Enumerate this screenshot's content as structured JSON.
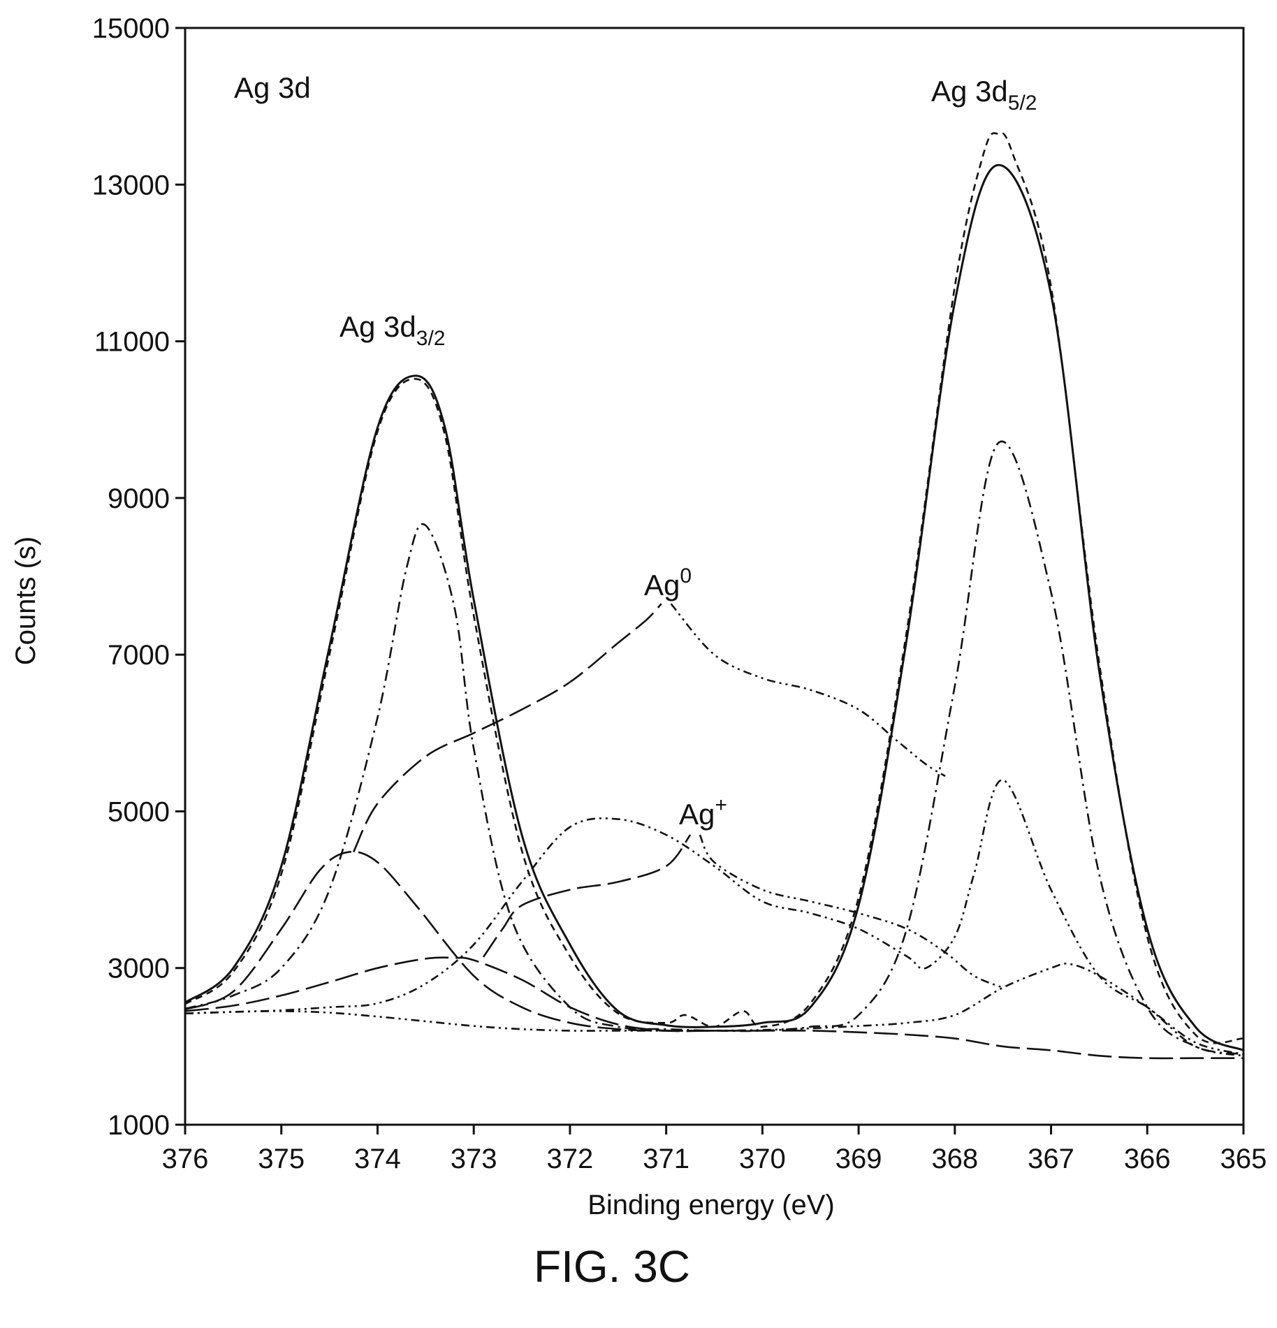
{
  "chart_data": {
    "type": "line",
    "title": "",
    "xlabel": "Binding energy (eV)",
    "ylabel": "Counts (s)",
    "xlim": [
      376,
      365
    ],
    "ylim": [
      1000,
      15000
    ],
    "x_reversed": true,
    "x_ticks": [
      "376",
      "375",
      "374",
      "373",
      "372",
      "371",
      "370",
      "369",
      "368",
      "367",
      "366",
      "365"
    ],
    "y_ticks": [
      "1000",
      "3000",
      "5000",
      "7000",
      "9000",
      "11000",
      "13000",
      "15000"
    ],
    "grid": false,
    "legend": "none",
    "annotations": {
      "region": "Ag 3d",
      "peak_32_main": "Ag 3d",
      "peak_32_sub": "3/2",
      "peak_52_main": "Ag 3d",
      "peak_52_sub": "5/2",
      "ag0_main": "Ag",
      "ag0_sup": "0",
      "agplus_main": "Ag",
      "agplus_sup": "+"
    },
    "series": [
      {
        "style": "solid",
        "x": [
          376,
          375.5,
          375,
          374.5,
          374,
          373.6,
          373.3,
          373,
          372.5,
          372,
          371.5,
          371,
          370.5,
          370,
          369.5,
          369,
          368.5,
          368,
          367.55,
          367,
          366.5,
          366,
          365.5,
          365
        ],
        "y": [
          2560,
          3000,
          4300,
          7100,
          9900,
          10560,
          9900,
          7700,
          4700,
          3300,
          2450,
          2270,
          2250,
          2300,
          2500,
          3800,
          7200,
          11500,
          13250,
          11600,
          6800,
          3500,
          2250,
          1950
        ]
      },
      {
        "style": "short-dash",
        "x": [
          376,
          375.5,
          375,
          374.5,
          374,
          373.6,
          373.3,
          373,
          372.5,
          372,
          371.5,
          371,
          370.8,
          370.5,
          370.2,
          370,
          369.5,
          369,
          368.5,
          368,
          367.7,
          367.55,
          367.4,
          367,
          366.5,
          366,
          365.5,
          365
        ],
        "y": [
          2540,
          2950,
          4200,
          7000,
          9850,
          10520,
          9800,
          7500,
          4500,
          3150,
          2420,
          2300,
          2400,
          2250,
          2450,
          2250,
          2550,
          3900,
          7300,
          11700,
          13400,
          13650,
          13400,
          11700,
          6900,
          3400,
          2150,
          2100
        ]
      },
      {
        "style": "dash-dot",
        "x": [
          376,
          375.5,
          375,
          374.5,
          374,
          373.7,
          373.5,
          373.2,
          373,
          372.6,
          372,
          371.5,
          371,
          370.5,
          370,
          369.5,
          369,
          368.5,
          368,
          367.55,
          367,
          366.5,
          366,
          365.5,
          365
        ],
        "y": [
          2480,
          2650,
          3000,
          4000,
          6200,
          8100,
          8650,
          7600,
          5800,
          3600,
          2500,
          2250,
          2220,
          2200,
          2200,
          2250,
          2400,
          3500,
          6600,
          9700,
          7800,
          4200,
          2500,
          2000,
          1900
        ]
      },
      {
        "style": "long-dash",
        "x": [
          376,
          375.5,
          375,
          374.6,
          374.3,
          374,
          373.6,
          373,
          372.5,
          372,
          371.5,
          371,
          370.5,
          370,
          369.5,
          369,
          368.5,
          368,
          367.5,
          367,
          366.5,
          366,
          365.5,
          365
        ],
        "y": [
          2470,
          2700,
          3500,
          4250,
          4480,
          4350,
          3800,
          2900,
          2500,
          2300,
          2220,
          2200,
          2200,
          2200,
          2200,
          2180,
          2150,
          2100,
          2000,
          1950,
          1880,
          1850,
          1850,
          1850
        ]
      },
      {
        "style": "dash-dot-dot",
        "x": [
          376,
          375.5,
          375,
          374.5,
          374,
          373.5,
          373,
          372.5,
          372,
          371.5,
          371,
          370.5,
          370,
          369.5,
          369,
          368.5,
          368.3,
          368,
          367.8,
          367.5,
          367,
          366.5,
          366,
          365.5,
          365
        ],
        "y": [
          2420,
          2440,
          2460,
          2500,
          2550,
          2800,
          3300,
          4100,
          4800,
          4900,
          4700,
          4300,
          3850,
          3700,
          3500,
          3150,
          3000,
          3400,
          4200,
          5400,
          4000,
          2900,
          2500,
          2050,
          1900
        ]
      },
      {
        "style": "dash-dot-dot",
        "x": [
          376,
          375.5,
          375,
          374.5,
          374,
          373.5,
          373,
          372.5,
          372,
          371.5,
          371,
          370.5,
          370,
          369.5,
          369,
          368.5,
          368,
          367.5,
          367,
          366.8,
          366.5,
          366,
          365.5,
          365
        ],
        "y": [
          2420,
          2440,
          2450,
          2430,
          2380,
          2320,
          2260,
          2220,
          2200,
          2200,
          2200,
          2200,
          2210,
          2230,
          2260,
          2300,
          2400,
          2750,
          3000,
          3050,
          2900,
          2500,
          2000,
          1880
        ]
      },
      {
        "style": "long-dash",
        "x": [
          376,
          375.5,
          375,
          374.5,
          374,
          373.5,
          373.2,
          373,
          372.5,
          372,
          371.5,
          371,
          370.5
        ],
        "y": [
          2450,
          2520,
          2650,
          2820,
          3000,
          3120,
          3130,
          3100,
          2850,
          2500,
          2280,
          2200,
          2200
        ]
      },
      {
        "style": "long-dash",
        "x": [
          374.25,
          374,
          373.5,
          373,
          372.5,
          372,
          371.5,
          371.2,
          371.05
        ],
        "y": [
          4480,
          5100,
          5700,
          6000,
          6300,
          6650,
          7150,
          7450,
          7650
        ]
      },
      {
        "style": "dash-dot-dot",
        "x": [
          370.95,
          370.5,
          370,
          369.5,
          369,
          368.6,
          368.3,
          368.1
        ],
        "y": [
          7650,
          7000,
          6700,
          6550,
          6300,
          5900,
          5600,
          5450
        ]
      },
      {
        "style": "long-dash",
        "x": [
          372.9,
          372.7,
          372.5,
          372,
          371.5,
          371,
          370.75
        ],
        "y": [
          3140,
          3500,
          3800,
          4000,
          4100,
          4300,
          4700
        ]
      },
      {
        "style": "dash-dot-dot",
        "x": [
          370.65,
          370.5,
          370,
          369.5,
          369,
          368.5,
          368.1,
          367.8,
          367.5
        ],
        "y": [
          4700,
          4350,
          4000,
          3850,
          3700,
          3500,
          3200,
          2900,
          2750
        ]
      }
    ]
  },
  "figure": {
    "caption": "FIG. 3C"
  }
}
